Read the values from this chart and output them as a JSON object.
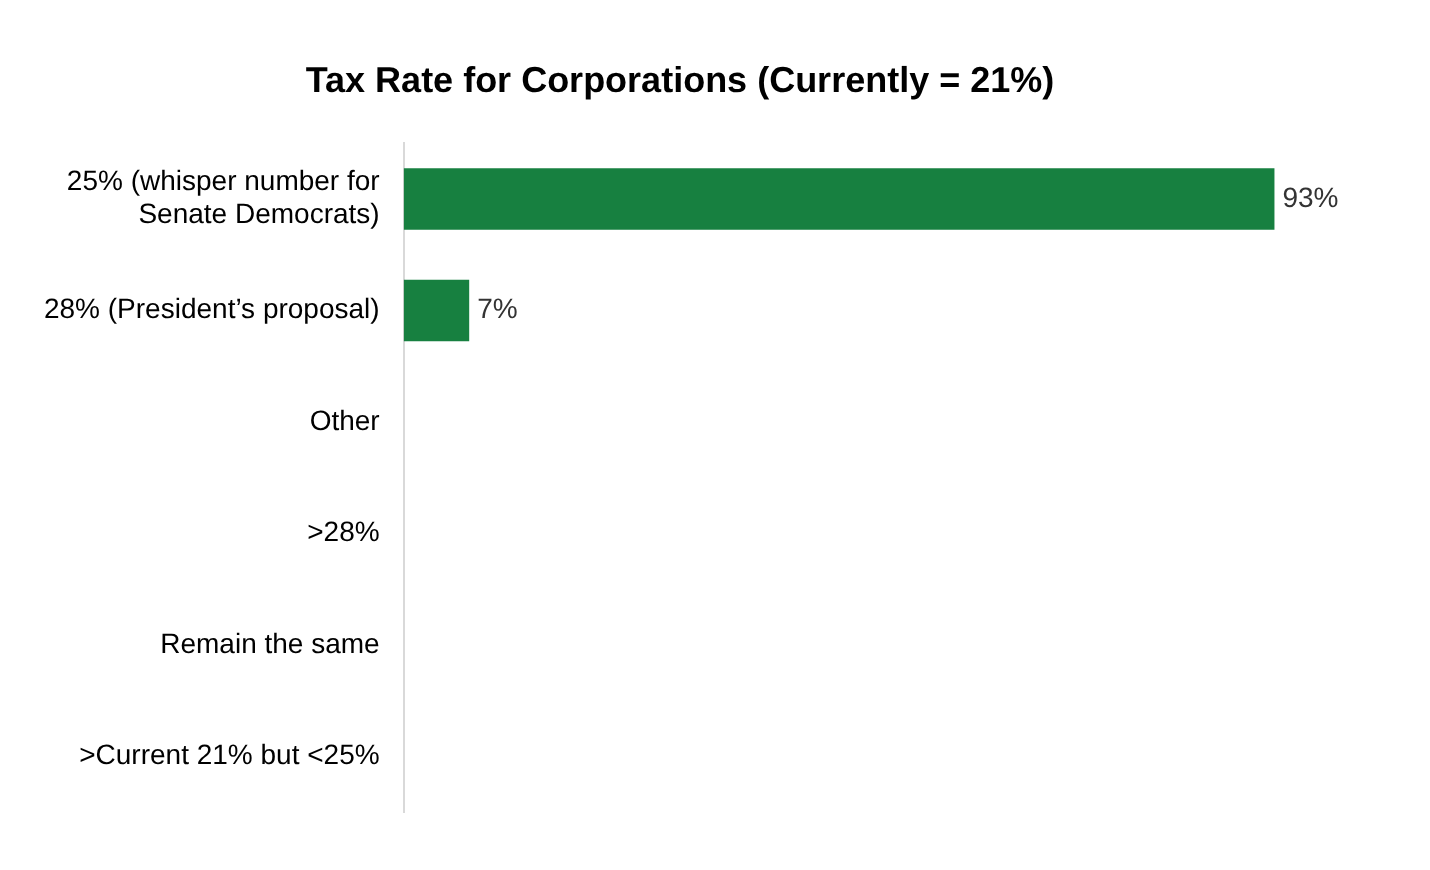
{
  "chart_data": {
    "type": "bar",
    "orientation": "horizontal",
    "title": "Tax Rate for Corporations (Currently = 21%)",
    "categories": [
      "25% (whisper number for Senate Democrats)",
      "28% (President’s proposal)",
      "Other",
      ">28%",
      "Remain the same",
      ">Current 21% but <25%"
    ],
    "values": [
      93,
      7,
      0,
      0,
      0,
      0
    ],
    "value_labels": [
      "93%",
      "7%",
      null,
      null,
      null,
      null
    ],
    "color": "#178040"
  }
}
